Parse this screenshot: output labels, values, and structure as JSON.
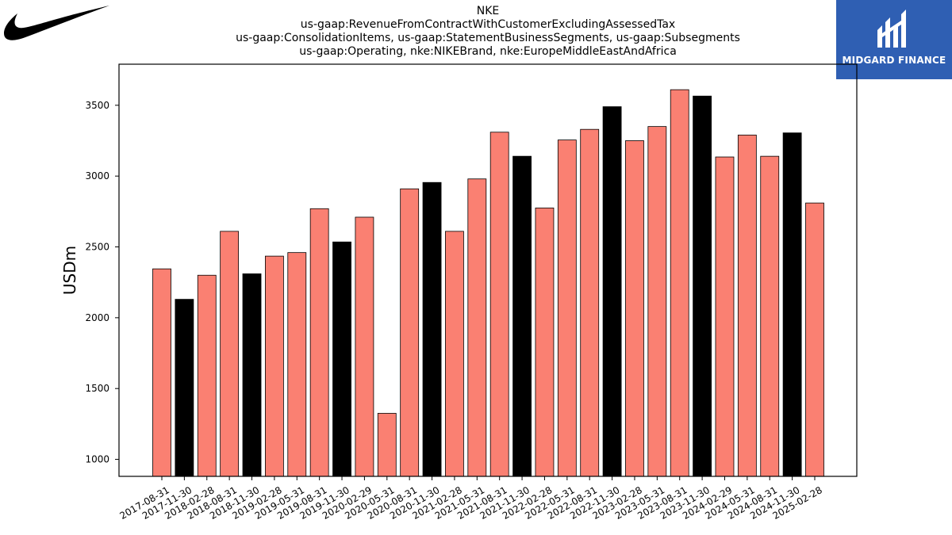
{
  "title_lines": [
    "NKE",
    "us-gaap:RevenueFromContractWithCustomerExcludingAssessedTax",
    "us-gaap:ConsolidationItems, us-gaap:StatementBusinessSegments, us-gaap:Subsegments",
    "us-gaap:Operating, nke:NIKEBrand, nke:EuropeMiddleEastAndAfrica"
  ],
  "logos": {
    "left": "nike-swoosh",
    "right_text": "MIDGARD FINANCE"
  },
  "colors": {
    "default_bar": "#fa8072",
    "highlight_bar": "#000000",
    "logo_bg": "#2f5fb3"
  },
  "chart_data": {
    "type": "bar",
    "ylabel": "USDm",
    "xlabel": "",
    "ylim": [
      880,
      3790
    ],
    "yticks": [
      1000,
      1500,
      2000,
      2500,
      3000,
      3500
    ],
    "grid": false,
    "categories": [
      "2017-08-31",
      "2017-11-30",
      "2018-02-28",
      "2018-08-31",
      "2018-11-30",
      "2019-02-28",
      "2019-05-31",
      "2019-08-31",
      "2019-11-30",
      "2020-02-29",
      "2020-05-31",
      "2020-08-31",
      "2020-11-30",
      "2021-02-28",
      "2021-05-31",
      "2021-08-31",
      "2021-11-30",
      "2022-02-28",
      "2022-05-31",
      "2022-08-31",
      "2022-11-30",
      "2023-02-28",
      "2023-05-31",
      "2023-08-31",
      "2023-11-30",
      "2024-02-29",
      "2024-05-31",
      "2024-08-31",
      "2024-11-30",
      "2025-02-28"
    ],
    "values": [
      2345,
      2130,
      2300,
      2610,
      2310,
      2435,
      2460,
      2770,
      2535,
      2710,
      1325,
      2910,
      2955,
      2610,
      2980,
      3310,
      3140,
      2775,
      3255,
      3330,
      3490,
      3250,
      3350,
      3610,
      3565,
      3135,
      3290,
      3140,
      3305,
      2810
    ],
    "highlight": [
      false,
      true,
      false,
      false,
      true,
      false,
      false,
      false,
      true,
      false,
      false,
      false,
      true,
      false,
      false,
      false,
      true,
      false,
      false,
      false,
      true,
      false,
      false,
      false,
      true,
      false,
      false,
      false,
      true,
      false
    ]
  }
}
